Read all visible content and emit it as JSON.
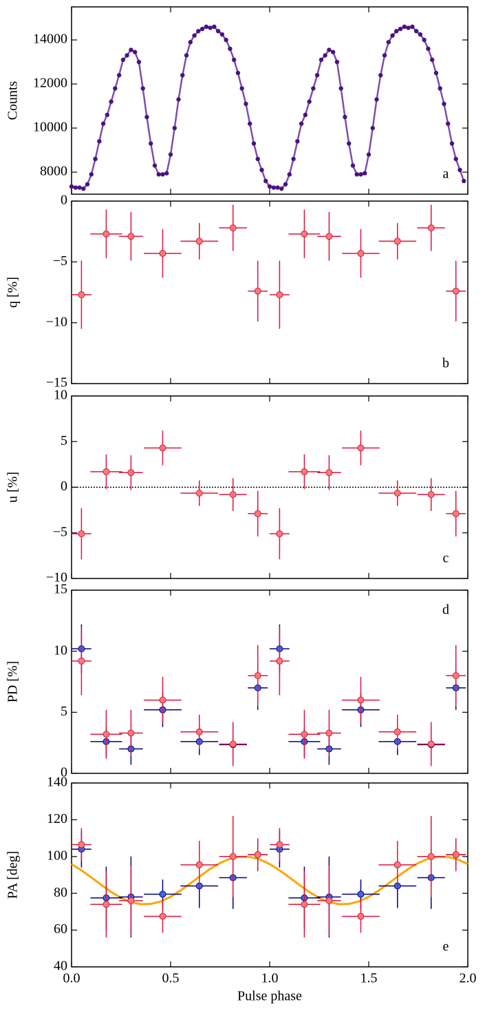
{
  "chart_data": [
    {
      "type": "line",
      "panel_label": "a",
      "ylabel": "Counts",
      "color": "#7b4fae",
      "marker_color": "#4b1380",
      "xlim": [
        0,
        2
      ],
      "xticks": [
        0,
        0.5,
        1,
        1.5,
        2
      ],
      "ylim": [
        7000,
        15500
      ],
      "yticks": [
        8000,
        10000,
        12000,
        14000
      ],
      "x": [
        0,
        0.02,
        0.04,
        0.06,
        0.08,
        0.1,
        0.12,
        0.14,
        0.16,
        0.18,
        0.2,
        0.22,
        0.24,
        0.26,
        0.28,
        0.3,
        0.32,
        0.34,
        0.36,
        0.38,
        0.4,
        0.42,
        0.44,
        0.46,
        0.48,
        0.5,
        0.52,
        0.54,
        0.56,
        0.58,
        0.6,
        0.62,
        0.64,
        0.66,
        0.68,
        0.7,
        0.72,
        0.74,
        0.76,
        0.78,
        0.8,
        0.82,
        0.84,
        0.86,
        0.88,
        0.9,
        0.92,
        0.94,
        0.96,
        0.98,
        1,
        1.02,
        1.04,
        1.06,
        1.08,
        1.1,
        1.12,
        1.14,
        1.16,
        1.18,
        1.2,
        1.22,
        1.24,
        1.26,
        1.28,
        1.3,
        1.32,
        1.34,
        1.36,
        1.38,
        1.4,
        1.42,
        1.44,
        1.46,
        1.48,
        1.5,
        1.52,
        1.54,
        1.56,
        1.58,
        1.6,
        1.62,
        1.64,
        1.66,
        1.68,
        1.7,
        1.72,
        1.74,
        1.76,
        1.78,
        1.8,
        1.82,
        1.84,
        1.86,
        1.88,
        1.9,
        1.92,
        1.94,
        1.96,
        1.98
      ],
      "values": [
        7350,
        7300,
        7300,
        7250,
        7450,
        7900,
        8600,
        9400,
        10200,
        10600,
        11200,
        11800,
        12400,
        13100,
        13300,
        13550,
        13450,
        13000,
        11800,
        10500,
        9300,
        8300,
        7900,
        7900,
        7950,
        8800,
        10000,
        11300,
        12400,
        13300,
        13900,
        14200,
        14400,
        14500,
        14600,
        14550,
        14600,
        14400,
        14250,
        14000,
        13600,
        13100,
        12500,
        11800,
        11100,
        10200,
        9300,
        8600,
        8100,
        7600,
        7350,
        7300,
        7300,
        7250,
        7450,
        7900,
        8600,
        9400,
        10200,
        10600,
        11200,
        11800,
        12400,
        13100,
        13300,
        13550,
        13450,
        13000,
        11800,
        10500,
        9300,
        8300,
        7900,
        7900,
        7950,
        8800,
        10000,
        11300,
        12400,
        13300,
        13900,
        14200,
        14400,
        14500,
        14600,
        14550,
        14600,
        14400,
        14250,
        14000,
        13600,
        13100,
        12500,
        11800,
        11100,
        10200,
        9300,
        8600,
        8100,
        7600
      ]
    },
    {
      "type": "errorbar",
      "panel_label": "b",
      "ylabel": "q [%]",
      "xlim": [
        0,
        2
      ],
      "xticks": [
        0,
        0.5,
        1,
        1.5,
        2
      ],
      "ylim": [
        -15,
        0
      ],
      "yticks": [
        0,
        {
          "value": -5,
          "label": "−5"
        },
        {
          "value": -10,
          "label": "−10"
        },
        {
          "value": -15,
          "label": "−15"
        }
      ],
      "series": [
        {
          "color": "#dc143c",
          "fill": "#f47c7c",
          "x": [
            0.05,
            0.175,
            0.3,
            0.46,
            0.645,
            0.815,
            0.94,
            1.05,
            1.175,
            1.3,
            1.46,
            1.645,
            1.815,
            1.94
          ],
          "xerr": [
            0.05,
            0.08,
            0.06,
            0.095,
            0.095,
            0.07,
            0.05,
            0.05,
            0.08,
            0.06,
            0.095,
            0.095,
            0.07,
            0.05
          ],
          "values": [
            -7.7,
            -2.7,
            -2.9,
            -4.3,
            -3.3,
            -2.2,
            -7.4,
            -7.7,
            -2.7,
            -2.9,
            -4.3,
            -3.3,
            -2.2,
            -7.4
          ],
          "yerr": [
            2.8,
            2.0,
            2.0,
            2.0,
            1.5,
            1.9,
            2.5,
            2.8,
            2.0,
            2.0,
            2.0,
            1.5,
            1.9,
            2.5
          ]
        }
      ]
    },
    {
      "type": "errorbar",
      "panel_label": "c",
      "ylabel": "u [%]",
      "refline": 0,
      "xlim": [
        0,
        2
      ],
      "xticks": [
        0,
        0.5,
        1,
        1.5,
        2
      ],
      "ylim": [
        -10,
        10
      ],
      "yticks": [
        10,
        5,
        0,
        {
          "value": -5,
          "label": "−5"
        },
        {
          "value": -10,
          "label": "−10"
        }
      ],
      "series": [
        {
          "color": "#dc143c",
          "fill": "#f47c7c",
          "x": [
            0.05,
            0.175,
            0.3,
            0.46,
            0.645,
            0.815,
            0.94,
            1.05,
            1.175,
            1.3,
            1.46,
            1.645,
            1.815,
            1.94
          ],
          "xerr": [
            0.05,
            0.08,
            0.06,
            0.095,
            0.095,
            0.07,
            0.05,
            0.05,
            0.08,
            0.06,
            0.095,
            0.095,
            0.07,
            0.05
          ],
          "values": [
            -5.1,
            1.7,
            1.6,
            4.3,
            -0.65,
            -0.8,
            -2.9,
            -5.1,
            1.7,
            1.6,
            4.3,
            -0.65,
            -0.8,
            -2.9
          ],
          "yerr": [
            2.8,
            1.9,
            1.9,
            1.9,
            1.4,
            1.8,
            2.5,
            2.8,
            1.9,
            1.9,
            1.9,
            1.4,
            1.8,
            2.5
          ]
        }
      ]
    },
    {
      "type": "errorbar",
      "panel_label": "d",
      "ylabel": "PD [%]",
      "label_top": true,
      "xlim": [
        0,
        2
      ],
      "xticks": [
        0,
        0.5,
        1,
        1.5,
        2
      ],
      "ylim": [
        0,
        15
      ],
      "yticks": [
        0,
        5,
        10,
        15
      ],
      "series": [
        {
          "color": "#000080",
          "fill": "#4169e1",
          "x": [
            0.05,
            0.175,
            0.3,
            0.46,
            0.645,
            0.815,
            0.94,
            1.05,
            1.175,
            1.3,
            1.46,
            1.645,
            1.815,
            1.94
          ],
          "xerr": [
            0.05,
            0.08,
            0.06,
            0.095,
            0.095,
            0.07,
            0.05,
            0.05,
            0.08,
            0.06,
            0.095,
            0.095,
            0.07,
            0.05
          ],
          "values": [
            10.2,
            2.6,
            2.0,
            5.2,
            2.6,
            2.35,
            7.0,
            10.2,
            2.6,
            2.0,
            5.2,
            2.6,
            2.35,
            7.0
          ],
          "yerr": [
            2.0,
            1.2,
            1.3,
            1.4,
            1.1,
            1.0,
            1.8,
            2.0,
            1.2,
            1.3,
            1.4,
            1.1,
            1.0,
            1.8
          ]
        },
        {
          "color": "#dc143c",
          "fill": "#f47c7c",
          "x": [
            0.05,
            0.175,
            0.3,
            0.46,
            0.645,
            0.815,
            0.94,
            1.05,
            1.175,
            1.3,
            1.46,
            1.645,
            1.815,
            1.94
          ],
          "xerr": [
            0.05,
            0.08,
            0.06,
            0.095,
            0.095,
            0.07,
            0.05,
            0.05,
            0.08,
            0.06,
            0.095,
            0.095,
            0.07,
            0.05
          ],
          "values": [
            9.2,
            3.2,
            3.3,
            6.0,
            3.4,
            2.4,
            8.0,
            9.2,
            3.2,
            3.3,
            6.0,
            3.4,
            2.4,
            8.0
          ],
          "yerr": [
            2.8,
            2.0,
            1.9,
            1.9,
            1.4,
            1.8,
            2.5,
            2.8,
            2.0,
            1.9,
            1.9,
            1.4,
            1.8,
            2.5
          ]
        }
      ]
    },
    {
      "type": "errorbar",
      "panel_label": "e",
      "ylabel": "PA [deg]",
      "xlabel": "Pulse phase",
      "xlim": [
        0,
        2
      ],
      "xticks": [
        {
          "value": 0,
          "label": "0.0"
        },
        0.5,
        {
          "value": 1,
          "label": "1.0"
        },
        1.5,
        {
          "value": 2,
          "label": "2.0"
        }
      ],
      "ylim": [
        40,
        140
      ],
      "yticks": [
        40,
        60,
        80,
        100,
        120,
        140
      ],
      "curve": {
        "color": "#ffa500",
        "x": [
          0,
          0.05,
          0.1,
          0.15,
          0.2,
          0.25,
          0.3,
          0.35,
          0.4,
          0.45,
          0.5,
          0.55,
          0.6,
          0.65,
          0.7,
          0.75,
          0.8,
          0.85,
          0.9,
          0.95,
          1,
          1.05,
          1.1,
          1.15,
          1.2,
          1.25,
          1.3,
          1.35,
          1.4,
          1.45,
          1.5,
          1.55,
          1.6,
          1.65,
          1.7,
          1.75,
          1.8,
          1.85,
          1.9,
          1.95,
          2
        ],
        "values": [
          95.9,
          92.5,
          88.6,
          84.6,
          80.7,
          77.5,
          75.2,
          74.1,
          74.2,
          75.6,
          78.1,
          81.5,
          85.4,
          89.4,
          93.3,
          96.5,
          98.8,
          99.9,
          99.8,
          98.4,
          95.9,
          92.5,
          88.6,
          84.6,
          80.7,
          77.5,
          75.2,
          74.1,
          74.2,
          75.6,
          78.1,
          81.5,
          85.4,
          89.4,
          93.3,
          96.5,
          98.8,
          99.9,
          99.8,
          98.4,
          95.9
        ]
      },
      "series": [
        {
          "color": "#000080",
          "fill": "#4169e1",
          "x": [
            0.05,
            0.175,
            0.3,
            0.46,
            0.645,
            0.815,
            0.94,
            1.05,
            1.175,
            1.3,
            1.46,
            1.645,
            1.815,
            1.94
          ],
          "xerr": [
            0.05,
            0.08,
            0.06,
            0.095,
            0.095,
            0.07,
            0.05,
            0.05,
            0.08,
            0.06,
            0.095,
            0.095,
            0.07,
            0.05
          ],
          "values": [
            104,
            77.5,
            78,
            79.5,
            84,
            88.5,
            101,
            104,
            77.5,
            78,
            79.5,
            84,
            88.5,
            101
          ],
          "yerr": [
            10,
            17,
            22,
            8,
            12,
            17,
            8,
            10,
            17,
            22,
            8,
            12,
            17,
            8
          ]
        },
        {
          "color": "#dc143c",
          "fill": "#f47c7c",
          "x": [
            0.05,
            0.175,
            0.3,
            0.46,
            0.645,
            0.815,
            0.94,
            1.05,
            1.175,
            1.3,
            1.46,
            1.645,
            1.815,
            1.94
          ],
          "xerr": [
            0.05,
            0.08,
            0.06,
            0.095,
            0.095,
            0.07,
            0.05,
            0.05,
            0.08,
            0.06,
            0.095,
            0.095,
            0.07,
            0.05
          ],
          "values": [
            106.5,
            74,
            76,
            67.5,
            95.5,
            100,
            101,
            106.5,
            74,
            76,
            67.5,
            95.5,
            100,
            101
          ],
          "yerr": [
            9,
            18,
            19,
            9,
            13,
            22,
            9,
            9,
            18,
            19,
            9,
            13,
            22,
            9
          ]
        }
      ]
    }
  ]
}
